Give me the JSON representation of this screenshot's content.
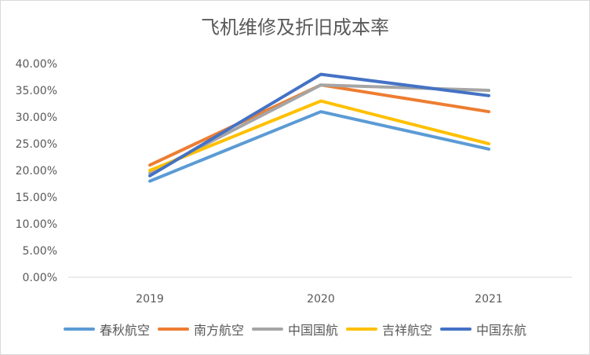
{
  "chart_data": {
    "type": "line",
    "title": "飞机维修及折旧成本率",
    "categories": [
      "2019",
      "2020",
      "2021"
    ],
    "ylim": [
      0,
      40
    ],
    "yticks": [
      0,
      5,
      10,
      15,
      20,
      25,
      30,
      35,
      40
    ],
    "ytick_labels": [
      "0.00%",
      "5.00%",
      "10.00%",
      "15.00%",
      "20.00%",
      "25.00%",
      "30.00%",
      "35.00%",
      "40.00%"
    ],
    "xlabel": "",
    "ylabel": "",
    "grid": false,
    "legend_position": "bottom",
    "series": [
      {
        "name": "春秋航空",
        "color": "#5b9bd5",
        "values": [
          18.0,
          31.0,
          24.0
        ]
      },
      {
        "name": "南方航空",
        "color": "#ed7d31",
        "values": [
          21.0,
          36.0,
          31.0
        ]
      },
      {
        "name": "中国国航",
        "color": "#a5a5a5",
        "values": [
          19.5,
          36.0,
          35.0
        ]
      },
      {
        "name": "吉祥航空",
        "color": "#ffc000",
        "values": [
          20.0,
          33.0,
          25.0
        ]
      },
      {
        "name": "中国东航",
        "color": "#4472c4",
        "values": [
          19.0,
          38.0,
          34.0
        ]
      }
    ]
  }
}
